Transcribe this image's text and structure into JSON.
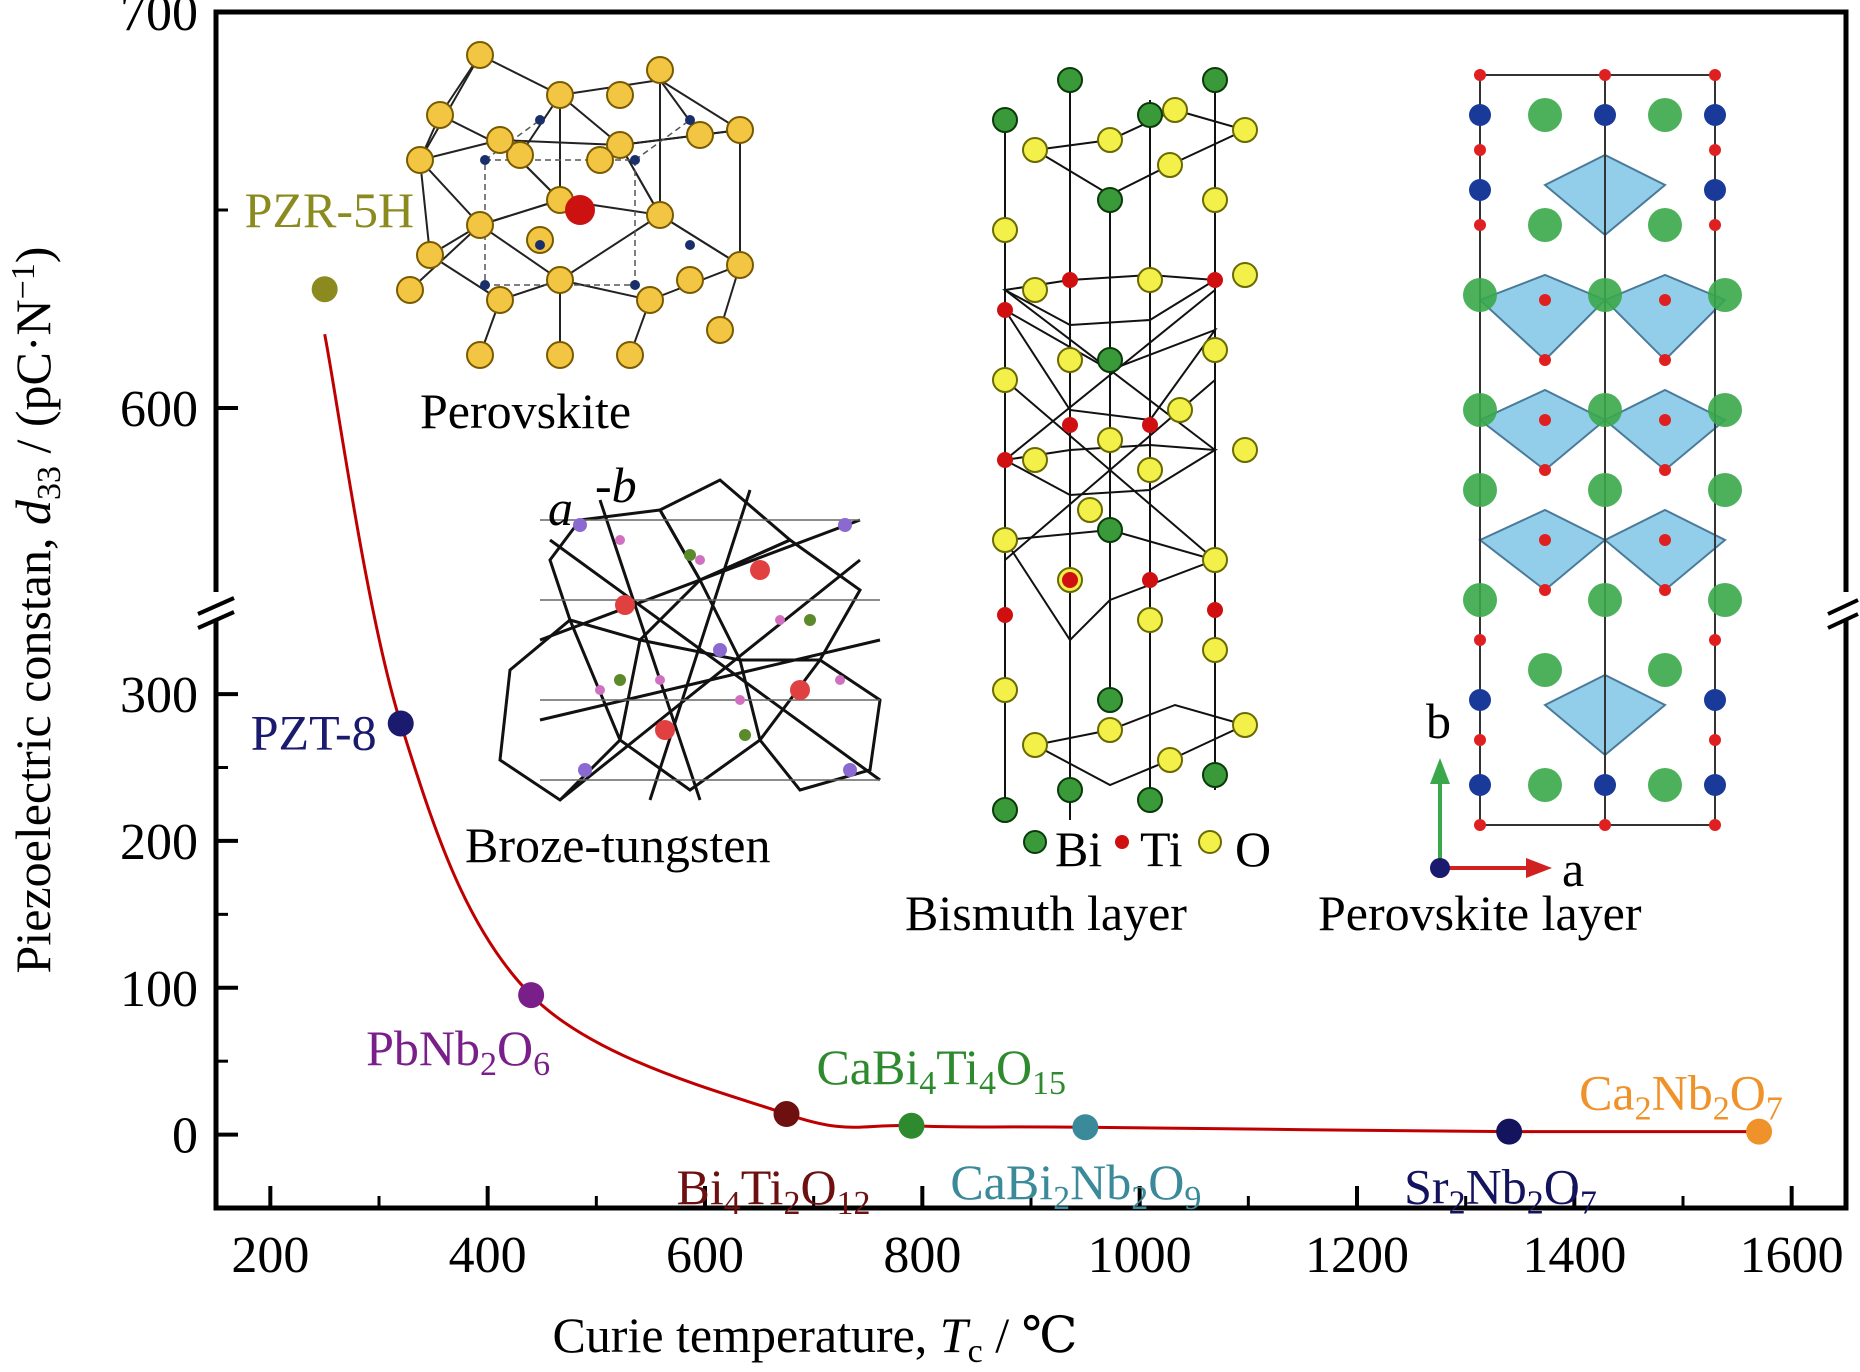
{
  "chart_data": {
    "type": "scatter",
    "title": "",
    "xlabel": {
      "prefix": "Curie temperature, ",
      "symbol": "T",
      "sub": "c",
      "suffix": " / ℃"
    },
    "ylabel": {
      "prefix": "Piezoelectric constan, ",
      "symbol": "d",
      "sub": "33",
      "suffix": " / (pC·N",
      "sup": "−1",
      "end": ")"
    },
    "xlim": [
      150,
      1650
    ],
    "x_ticks": [
      200,
      400,
      600,
      800,
      1000,
      1200,
      1400,
      1600
    ],
    "x_tick_labels": [
      "200",
      "400",
      "600",
      "800",
      "1000",
      "1200",
      "1400",
      "1600"
    ],
    "y_segments": [
      {
        "range": [
          -50,
          360
        ],
        "ticks": [
          0,
          100,
          200,
          300
        ],
        "labels": [
          "0",
          "100",
          "200",
          "300"
        ]
      },
      {
        "range": [
          550,
          700
        ],
        "ticks": [
          600,
          700
        ],
        "labels": [
          "600",
          "700"
        ]
      }
    ],
    "axis_break": true,
    "points": [
      {
        "name": "PZR-5H",
        "parts": [
          [
            "PZR-5H",
            ""
          ]
        ],
        "x": 250,
        "y": 630,
        "color": "#8a8a1e"
      },
      {
        "name": "PZT-8",
        "parts": [
          [
            "PZT-8",
            ""
          ]
        ],
        "x": 320,
        "y": 280,
        "color": "#1a1a6e"
      },
      {
        "name": "PbNb2O6",
        "parts": [
          [
            "PbNb",
            ""
          ],
          [
            "2",
            "sub"
          ],
          [
            "O",
            ""
          ],
          [
            "6",
            "sub"
          ]
        ],
        "x": 440,
        "y": 95,
        "color": "#7a1f8a"
      },
      {
        "name": "Bi4Ti2O12",
        "parts": [
          [
            "Bi",
            ""
          ],
          [
            "4",
            "sub"
          ],
          [
            "Ti",
            ""
          ],
          [
            "2",
            "sub"
          ],
          [
            "O",
            ""
          ],
          [
            "12",
            "sub"
          ]
        ],
        "x": 675,
        "y": 14,
        "color": "#6e1010"
      },
      {
        "name": "CaBi4Ti4O15",
        "parts": [
          [
            "CaBi",
            ""
          ],
          [
            "4",
            "sub"
          ],
          [
            "Ti",
            ""
          ],
          [
            "4",
            "sub"
          ],
          [
            "O",
            ""
          ],
          [
            "15",
            "sub"
          ]
        ],
        "x": 790,
        "y": 6,
        "color": "#2e8a2e"
      },
      {
        "name": "CaBi2Nb2O9",
        "parts": [
          [
            "CaBi",
            ""
          ],
          [
            "2",
            "sub"
          ],
          [
            "Nb",
            ""
          ],
          [
            "2",
            "sub"
          ],
          [
            "O",
            ""
          ],
          [
            "9",
            "sub"
          ]
        ],
        "x": 950,
        "y": 5,
        "color": "#3a8a9a"
      },
      {
        "name": "Sr2Nb2O7",
        "parts": [
          [
            "Sr",
            ""
          ],
          [
            "2",
            "sub"
          ],
          [
            "Nb",
            ""
          ],
          [
            "2",
            "sub"
          ],
          [
            "O",
            ""
          ],
          [
            "7",
            "sub"
          ]
        ],
        "x": 1340,
        "y": 2,
        "color": "#14145e"
      },
      {
        "name": "Ca2Nb2O7",
        "parts": [
          [
            "Ca",
            ""
          ],
          [
            "2",
            "sub"
          ],
          [
            "Nb",
            ""
          ],
          [
            "2",
            "sub"
          ],
          [
            "O",
            ""
          ],
          [
            "7",
            "sub"
          ]
        ],
        "x": 1570,
        "y": 2,
        "color": "#f0922a"
      }
    ],
    "curve_color": "#c00000",
    "structure_labels": [
      "Perovskite",
      "Broze-tungsten",
      "Bismuth layer",
      "Perovskite layer"
    ],
    "legend_elements": [
      "Bi",
      "Ti",
      "O"
    ],
    "axis_letters": {
      "broze_a": "a",
      "broze_b": "-b",
      "layer_a": "a",
      "layer_b": "b"
    }
  }
}
